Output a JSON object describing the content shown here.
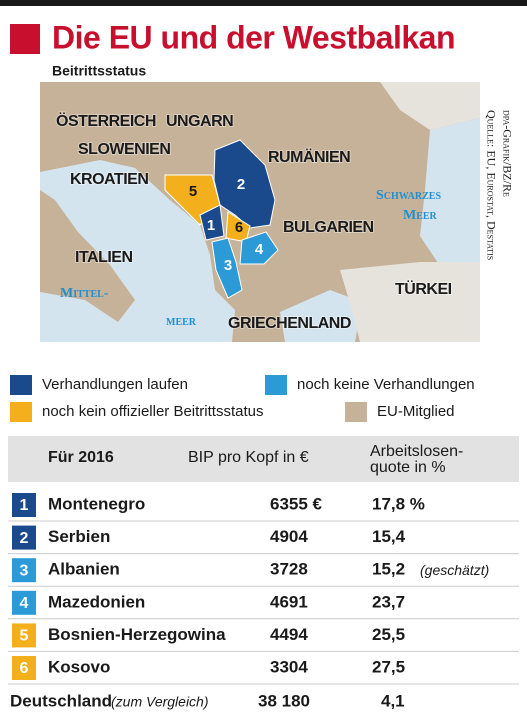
{
  "header": {
    "title": "Die EU und der Westbalkan",
    "subtitle": "Beitrittsstatus"
  },
  "map": {
    "labels": [
      "ÖSTERREICH",
      "UNGARN",
      "SLOWENIEN",
      "RUMÄNIEN",
      "KROATIEN",
      "ITALIEN",
      "BULGARIEN",
      "GRIECHENLAND",
      "TÜRKEI"
    ],
    "sea_labels": [
      "Schwarzes",
      "Meer",
      "Mittel-",
      "meer"
    ]
  },
  "source": [
    "Quelle: EU, Eurostat, Destatis",
    "dpa-Grafik/BZ/Re"
  ],
  "legend": [
    {
      "label": "Verhandlungen laufen",
      "color": "#1b4a8c"
    },
    {
      "label": "noch keine Verhandlungen",
      "color": "#2b9ad6"
    },
    {
      "label": "noch kein offizieller Beitrittsstatus",
      "color": "#f4b01c"
    },
    {
      "label": "EU-Mitglied",
      "color": "#c6b299"
    }
  ],
  "table": {
    "header": {
      "year": "Für 2016",
      "gdp": "BIP pro Kopf in €",
      "unemployment": [
        "Arbeitslosen-",
        "quote in %"
      ]
    },
    "rows": [
      {
        "rank": "1",
        "country": "Montenegro",
        "gdp": "6355 €",
        "unemployment": "17,8 %",
        "color": "#1b4a8c"
      },
      {
        "rank": "2",
        "country": "Serbien",
        "gdp": "4904",
        "unemployment": "15,4",
        "color": "#1b4a8c"
      },
      {
        "rank": "3",
        "country": "Albanien",
        "gdp": "3728",
        "unemployment": "15,2",
        "note": "(geschätzt)",
        "color": "#2b9ad6"
      },
      {
        "rank": "4",
        "country": "Mazedonien",
        "gdp": "4691",
        "unemployment": "23,7",
        "color": "#2b9ad6"
      },
      {
        "rank": "5",
        "country": "Bosnien-Herzegowina",
        "gdp": "4494",
        "unemployment": "25,5",
        "color": "#f4b01c"
      },
      {
        "rank": "6",
        "country": "Kosovo",
        "gdp": "3304",
        "unemployment": "27,5",
        "color": "#f4b01c"
      }
    ],
    "comparison": {
      "country": "Deutschland",
      "note": "(zum Vergleich)",
      "gdp": "38 180",
      "unemployment": "4,1"
    }
  }
}
